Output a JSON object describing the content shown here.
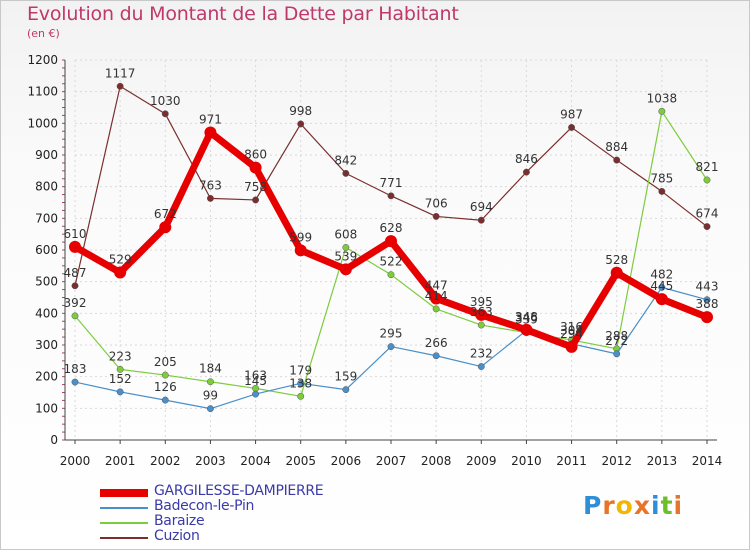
{
  "header": {
    "title": "Evolution du Montant de la Dette par Habitant",
    "subtitle": "(en €)"
  },
  "colors": {
    "title": "#c0386a",
    "axis_text": "#222222",
    "legend_text": "#3a3aa8"
  },
  "logo": {
    "letters": [
      "P",
      "r",
      "o",
      "x",
      "i",
      "t",
      "i"
    ],
    "colors": [
      "#2f8fd6",
      "#e8742a",
      "#f2b705",
      "#e8742a",
      "#2f8fd6",
      "#6cbf2a",
      "#e8742a"
    ]
  },
  "chart_data": {
    "type": "line",
    "title": "Evolution du Montant de la Dette par Habitant",
    "subtitle": "(en €)",
    "xlabel": "",
    "ylabel": "",
    "ylim": [
      0,
      1200
    ],
    "yticks": [
      0,
      100,
      200,
      300,
      400,
      500,
      600,
      700,
      800,
      900,
      1000,
      1100,
      1200
    ],
    "categories": [
      "2000",
      "2001",
      "2002",
      "2003",
      "2004",
      "2005",
      "2006",
      "2007",
      "2008",
      "2009",
      "2010",
      "2011",
      "2012",
      "2013",
      "2014"
    ],
    "grid": true,
    "legend_position": "bottom-left",
    "series": [
      {
        "name": "Cuzion",
        "color": "#7a2e2e",
        "width": 1.2,
        "values": [
          487,
          1117,
          1030,
          763,
          758,
          998,
          842,
          771,
          706,
          694,
          846,
          987,
          884,
          785,
          674
        ],
        "labels": [
          "487",
          "1117",
          "1030",
          "763",
          "758",
          "998",
          "842",
          "771",
          "706",
          "694",
          "846",
          "987",
          "884",
          "785",
          "674"
        ]
      },
      {
        "name": "Baraize",
        "color": "#7ccc3c",
        "width": 1.2,
        "values": [
          392,
          223,
          205,
          184,
          163,
          138,
          608,
          522,
          414,
          363,
          339,
          316,
          288,
          1038,
          821
        ],
        "labels": [
          "392",
          "223",
          "205",
          "184",
          "163",
          "138",
          "608",
          "522",
          "414",
          "363",
          "339",
          "316",
          "288",
          "1038",
          "821"
        ]
      },
      {
        "name": "Badecon-le-Pin",
        "color": "#4a8fc8",
        "width": 1.2,
        "values": [
          183,
          152,
          126,
          99,
          145,
          179,
          159,
          295,
          266,
          232,
          346,
          304,
          272,
          482,
          443
        ],
        "labels": [
          "183",
          "152",
          "126",
          "99",
          "145",
          "179",
          "159",
          "295",
          "266",
          "232",
          "346",
          "304",
          "272",
          "482",
          "443"
        ]
      },
      {
        "name": "GARGILESSE-DAMPIERRE",
        "color": "#e60000",
        "width": 7,
        "values": [
          610,
          529,
          672,
          971,
          860,
          599,
          539,
          628,
          447,
          395,
          348,
          294,
          528,
          445,
          388
        ],
        "labels": [
          "610",
          "529",
          "672",
          "971",
          "860",
          "599",
          "539",
          "628",
          "447",
          "395",
          "348",
          "294",
          "528",
          "445",
          "388"
        ]
      }
    ],
    "legend_order": [
      "GARGILESSE-DAMPIERRE",
      "Badecon-le-Pin",
      "Baraize",
      "Cuzion"
    ]
  }
}
